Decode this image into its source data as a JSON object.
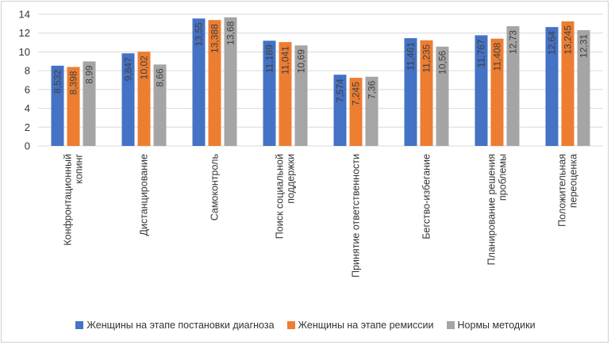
{
  "chart_data": {
    "type": "bar",
    "title": "",
    "xlabel": "",
    "ylabel": "",
    "ylim": [
      0,
      14
    ],
    "yticks": [
      0,
      2,
      4,
      6,
      8,
      10,
      12,
      14
    ],
    "grid": true,
    "legend_position": "bottom",
    "categories": [
      [
        "Конфронтационный",
        "копинг"
      ],
      [
        "Дистанцирование"
      ],
      [
        "Самоконтроль"
      ],
      [
        "Поиск социальной",
        "поддержки"
      ],
      [
        "Принятие ответственности"
      ],
      [
        "Бегство-избегание"
      ],
      [
        "Планирование решения",
        "проблемы"
      ],
      [
        "Положительная",
        "переоценка"
      ]
    ],
    "series": [
      {
        "name": "Женщины на этапе постановки диагноза",
        "color": "#4472C4",
        "values": [
          8.532,
          9.847,
          13.55,
          11.189,
          7.574,
          11.461,
          11.767,
          12.64
        ],
        "labels": [
          "8,532",
          "9,847",
          "13,55",
          "11,189",
          "7,574",
          "11,461",
          "11,767",
          "12,64"
        ]
      },
      {
        "name": "Женщины на этапе ремиссии",
        "color": "#ED7D31",
        "values": [
          8.398,
          10.02,
          13.388,
          11.041,
          7.245,
          11.235,
          11.408,
          13.245
        ],
        "labels": [
          "8,398",
          "10,02",
          "13,388",
          "11,041",
          "7,245",
          "11,235",
          "11,408",
          "13,245"
        ]
      },
      {
        "name": "Нормы методики",
        "color": "#A5A5A5",
        "values": [
          8.99,
          8.66,
          13.68,
          10.69,
          7.36,
          10.56,
          12.73,
          12.31
        ],
        "labels": [
          "8,99",
          "8,66",
          "13,68",
          "10,69",
          "7,36",
          "10,56",
          "12,73",
          "12,31"
        ]
      }
    ]
  }
}
